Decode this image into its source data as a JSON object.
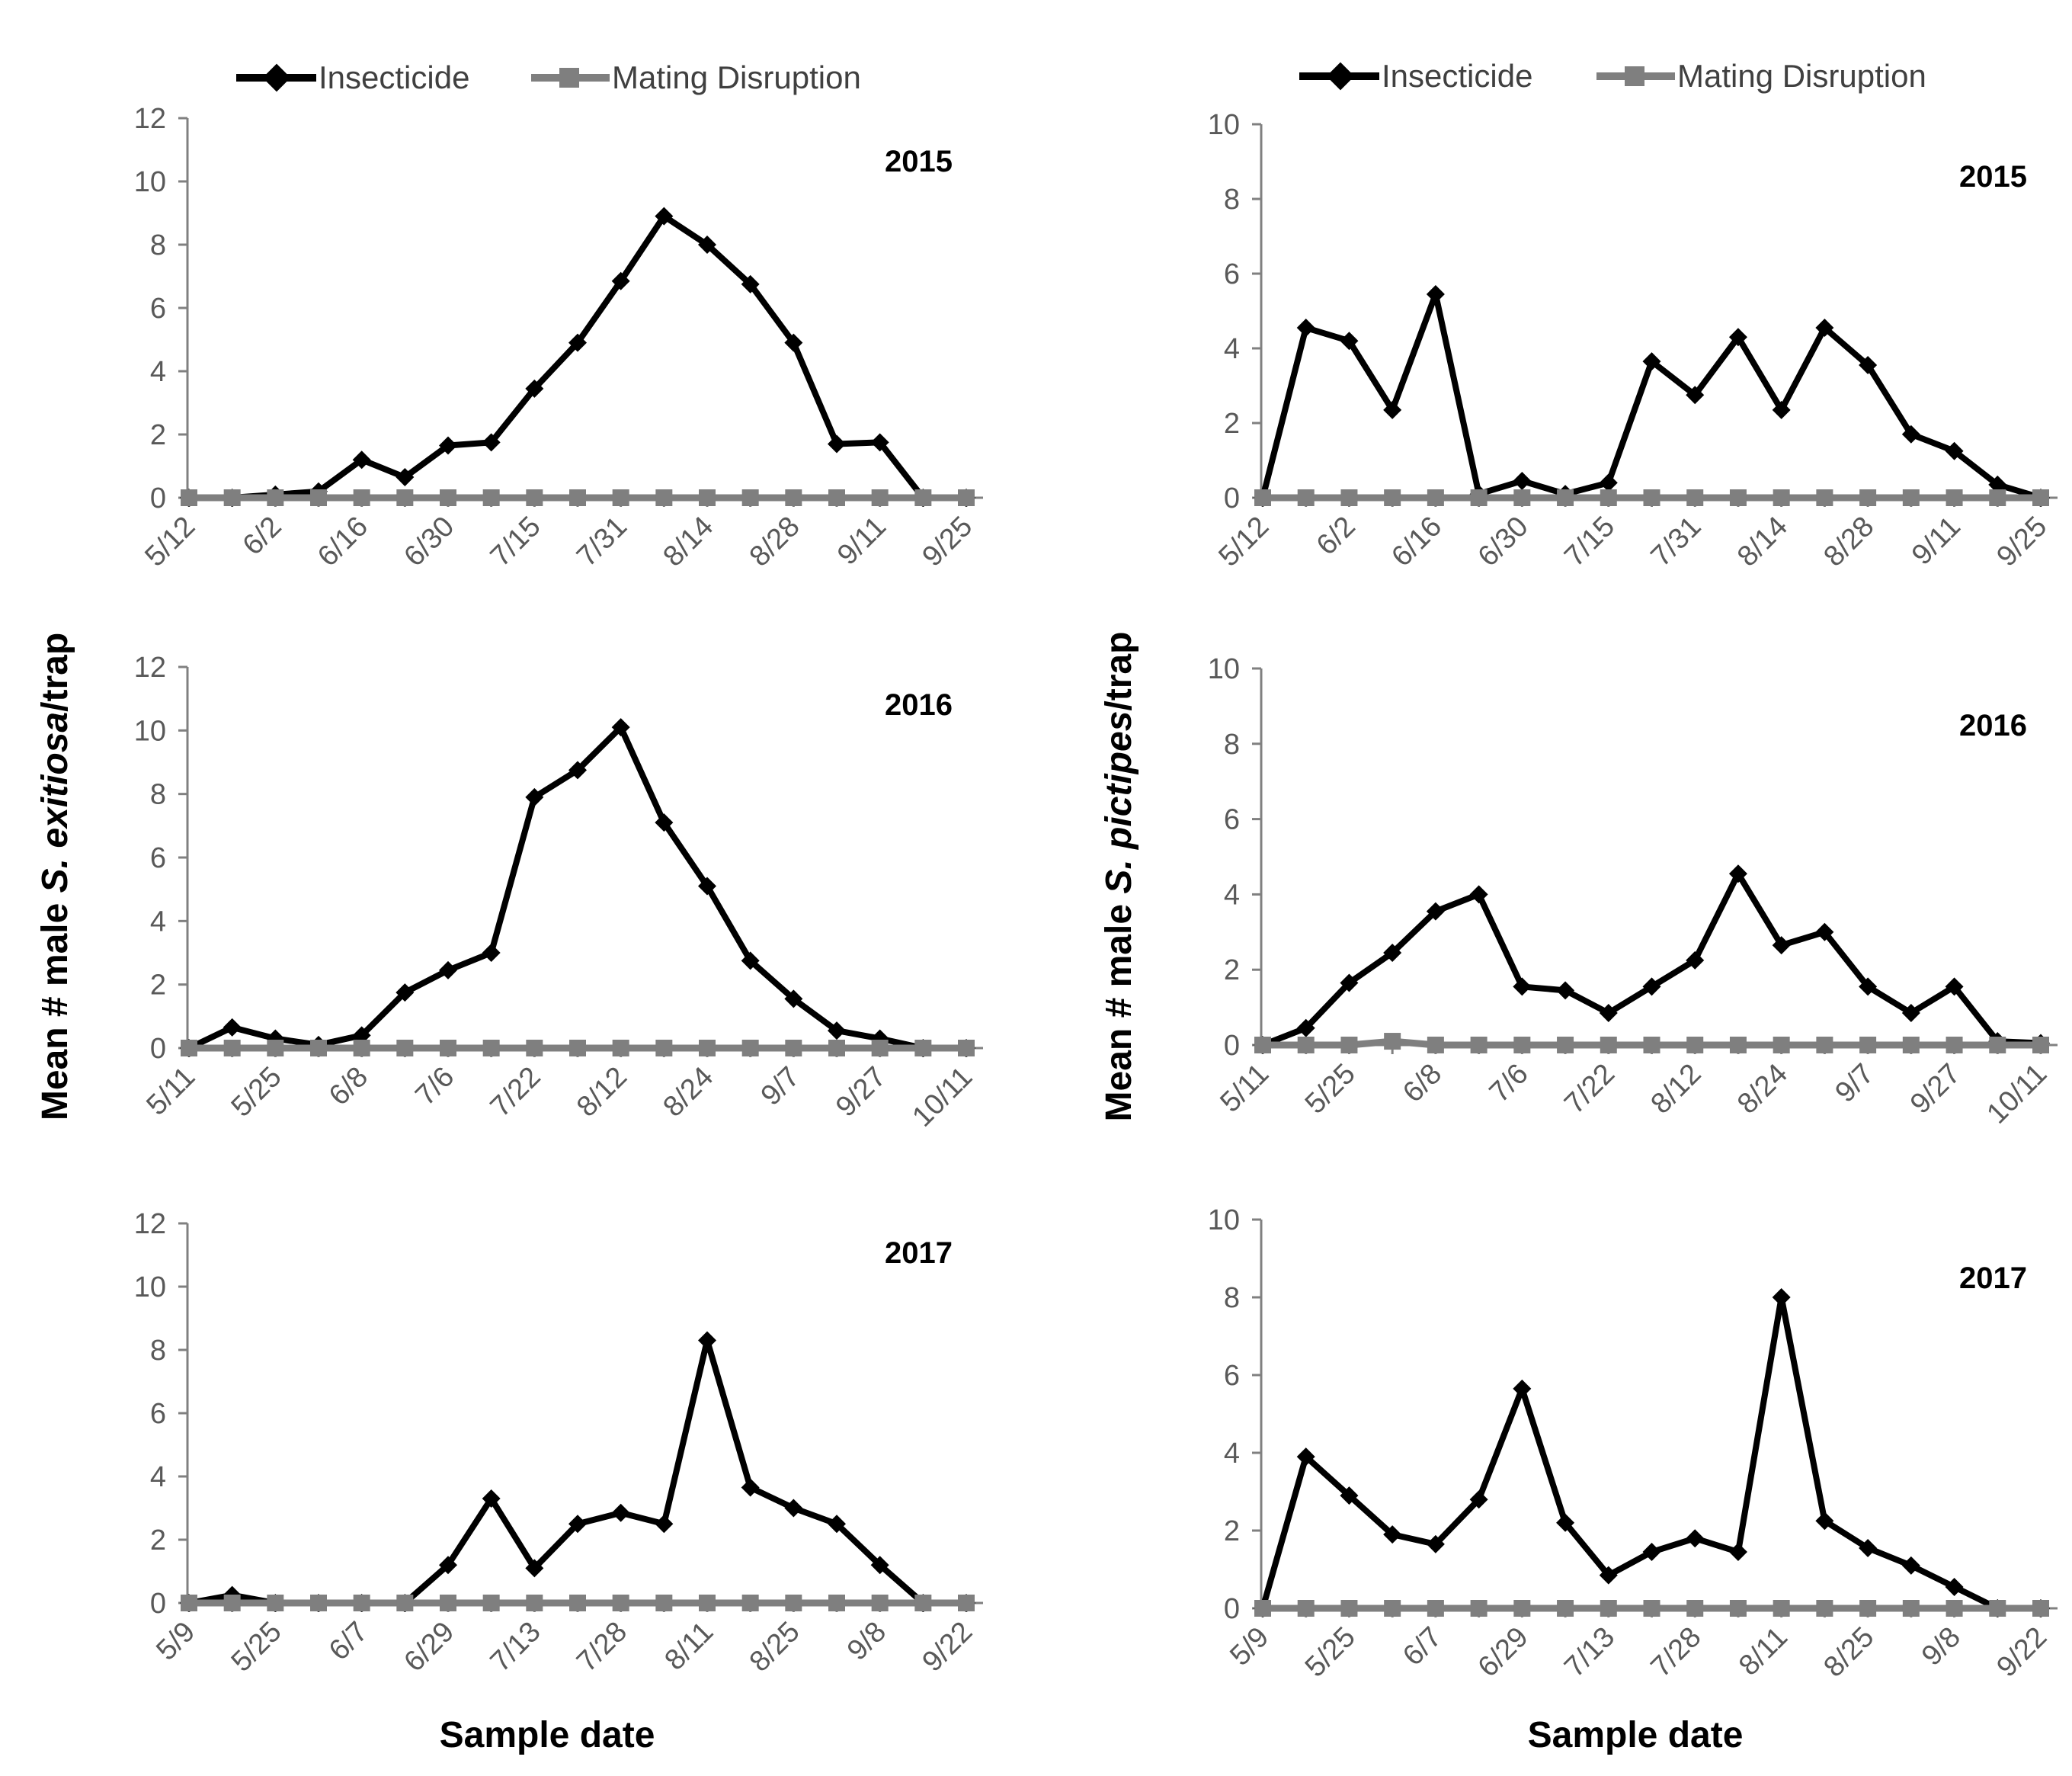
{
  "colors": {
    "insecticide": "#000000",
    "mating_disruption": "#7f7f7f",
    "axis": "#808080"
  },
  "legend": {
    "insecticide": "Insecticide",
    "mating_disruption": "Mating Disruption"
  },
  "ylabels": {
    "left": {
      "prefix": "Mean # male ",
      "species": "S. exitiosa",
      "suffix": "/trap"
    },
    "right": {
      "prefix": "Mean # male ",
      "species": "S. pictipes",
      "suffix": "/trap"
    }
  },
  "xlabel": "Sample date",
  "chart_data": [
    {
      "type": "line",
      "panel": "left-2015",
      "title": "2015",
      "xlabel": "Sample date",
      "ylabel": "Mean # male S. exitiosa/trap",
      "ylim": [
        0,
        12
      ],
      "yticks": [
        0,
        2,
        4,
        6,
        8,
        10,
        12
      ],
      "tick_labels": [
        "5/12",
        "6/2",
        "6/16",
        "6/30",
        "7/15",
        "7/31",
        "8/14",
        "8/28",
        "9/11",
        "9/25"
      ],
      "tick_positions": [
        0,
        2,
        4,
        6,
        8,
        10,
        12,
        14,
        16,
        18
      ],
      "series": [
        {
          "name": "Insecticide",
          "values": [
            0,
            0,
            0.1,
            0.2,
            1.2,
            0.65,
            1.65,
            1.75,
            3.45,
            4.9,
            6.85,
            8.9,
            8.0,
            6.75,
            4.9,
            1.7,
            1.75,
            0,
            0
          ]
        },
        {
          "name": "Mating Disruption",
          "values": [
            0,
            0,
            0,
            0,
            0,
            0,
            0,
            0,
            0,
            0,
            0,
            0,
            0,
            0,
            0,
            0,
            0,
            0,
            0
          ]
        }
      ]
    },
    {
      "type": "line",
      "panel": "left-2016",
      "title": "2016",
      "xlabel": "Sample date",
      "ylabel": "Mean # male S. exitiosa/trap",
      "ylim": [
        0,
        12
      ],
      "yticks": [
        0,
        2,
        4,
        6,
        8,
        10,
        12
      ],
      "tick_labels": [
        "5/11",
        "5/25",
        "6/8",
        "7/6",
        "7/22",
        "8/12",
        "8/24",
        "9/7",
        "9/27",
        "10/11"
      ],
      "tick_positions": [
        0,
        2,
        4,
        6,
        8,
        10,
        12,
        14,
        16,
        18
      ],
      "series": [
        {
          "name": "Insecticide",
          "values": [
            0,
            0.65,
            0.3,
            0.1,
            0.4,
            1.75,
            2.45,
            3.0,
            7.9,
            8.75,
            10.1,
            7.1,
            5.1,
            2.75,
            1.55,
            0.55,
            0.3,
            0,
            0
          ]
        },
        {
          "name": "Mating Disruption",
          "values": [
            0,
            0,
            0,
            0,
            0,
            0,
            0,
            0,
            0,
            0,
            0,
            0,
            0,
            0,
            0,
            0,
            0,
            0,
            0
          ]
        }
      ]
    },
    {
      "type": "line",
      "panel": "left-2017",
      "title": "2017",
      "xlabel": "Sample date",
      "ylabel": "Mean # male S. exitiosa/trap",
      "ylim": [
        0,
        12
      ],
      "yticks": [
        0,
        2,
        4,
        6,
        8,
        10,
        12
      ],
      "tick_labels": [
        "5/9",
        "5/25",
        "6/7",
        "6/29",
        "7/13",
        "7/28",
        "8/11",
        "8/25",
        "9/8",
        "9/22"
      ],
      "tick_positions": [
        0,
        2,
        4,
        6,
        8,
        10,
        12,
        14,
        16,
        18
      ],
      "series": [
        {
          "name": "Insecticide",
          "values": [
            0,
            0.25,
            0,
            0,
            0,
            0,
            1.2,
            3.3,
            1.1,
            2.5,
            2.85,
            2.5,
            8.3,
            3.65,
            3.0,
            2.5,
            1.2,
            0,
            0
          ]
        },
        {
          "name": "Mating Disruption",
          "values": [
            0,
            0,
            0,
            0,
            0,
            0,
            0,
            0,
            0,
            0,
            0,
            0,
            0,
            0,
            0,
            0,
            0,
            0,
            0
          ]
        }
      ]
    },
    {
      "type": "line",
      "panel": "right-2015",
      "title": "2015",
      "xlabel": "Sample date",
      "ylabel": "Mean # male S. pictipes/trap",
      "ylim": [
        0,
        10
      ],
      "yticks": [
        0,
        2,
        4,
        6,
        8,
        10
      ],
      "tick_labels": [
        "5/12",
        "6/2",
        "6/16",
        "6/30",
        "7/15",
        "7/31",
        "8/14",
        "8/28",
        "9/11",
        "9/25"
      ],
      "tick_positions": [
        0,
        2,
        4,
        6,
        8,
        10,
        12,
        14,
        16,
        18
      ],
      "series": [
        {
          "name": "Insecticide",
          "values": [
            0,
            4.55,
            4.2,
            2.35,
            5.45,
            0.1,
            0.45,
            0.1,
            0.4,
            3.65,
            2.75,
            4.3,
            2.35,
            4.55,
            3.55,
            1.7,
            1.25,
            0.35,
            0
          ]
        },
        {
          "name": "Mating Disruption",
          "values": [
            0,
            0,
            0,
            0,
            0,
            0,
            0,
            0,
            0,
            0,
            0,
            0,
            0,
            0,
            0,
            0,
            0,
            0,
            0
          ]
        }
      ]
    },
    {
      "type": "line",
      "panel": "right-2016",
      "title": "2016",
      "xlabel": "Sample date",
      "ylabel": "Mean # male S. pictipes/trap",
      "ylim": [
        0,
        10
      ],
      "yticks": [
        0,
        2,
        4,
        6,
        8,
        10
      ],
      "tick_labels": [
        "5/11",
        "5/25",
        "6/8",
        "7/6",
        "7/22",
        "8/12",
        "8/24",
        "9/7",
        "9/27",
        "10/11"
      ],
      "tick_positions": [
        0,
        2,
        4,
        6,
        8,
        10,
        12,
        14,
        16,
        18
      ],
      "series": [
        {
          "name": "Insecticide",
          "values": [
            0,
            0.45,
            1.65,
            2.45,
            3.55,
            4.0,
            1.55,
            1.45,
            0.85,
            1.55,
            2.25,
            4.55,
            2.65,
            3.0,
            1.55,
            0.85,
            1.55,
            0.1,
            0.05
          ]
        },
        {
          "name": "Mating Disruption",
          "values": [
            0,
            0,
            0,
            0.1,
            0,
            0,
            0,
            0,
            0,
            0,
            0,
            0,
            0,
            0,
            0,
            0,
            0,
            0,
            0
          ]
        }
      ]
    },
    {
      "type": "line",
      "panel": "right-2017",
      "title": "2017",
      "xlabel": "Sample date",
      "ylabel": "Mean # male S. pictipes/trap",
      "ylim": [
        0,
        10
      ],
      "yticks": [
        0,
        2,
        4,
        6,
        8,
        10
      ],
      "tick_labels": [
        "5/9",
        "5/25",
        "6/7",
        "6/29",
        "7/13",
        "7/28",
        "8/11",
        "8/25",
        "9/8",
        "9/22"
      ],
      "tick_positions": [
        0,
        2,
        4,
        6,
        8,
        10,
        12,
        14,
        16,
        18
      ],
      "series": [
        {
          "name": "Insecticide",
          "values": [
            0,
            3.9,
            2.9,
            1.9,
            1.65,
            2.8,
            5.65,
            2.2,
            0.85,
            1.45,
            1.8,
            1.45,
            8.0,
            2.25,
            1.55,
            1.1,
            0.55,
            0,
            0
          ]
        },
        {
          "name": "Mating Disruption",
          "values": [
            0,
            0,
            0,
            0,
            0,
            0,
            0,
            0,
            0,
            0,
            0,
            0,
            0,
            0,
            0,
            0,
            0,
            0,
            0
          ]
        }
      ]
    }
  ]
}
